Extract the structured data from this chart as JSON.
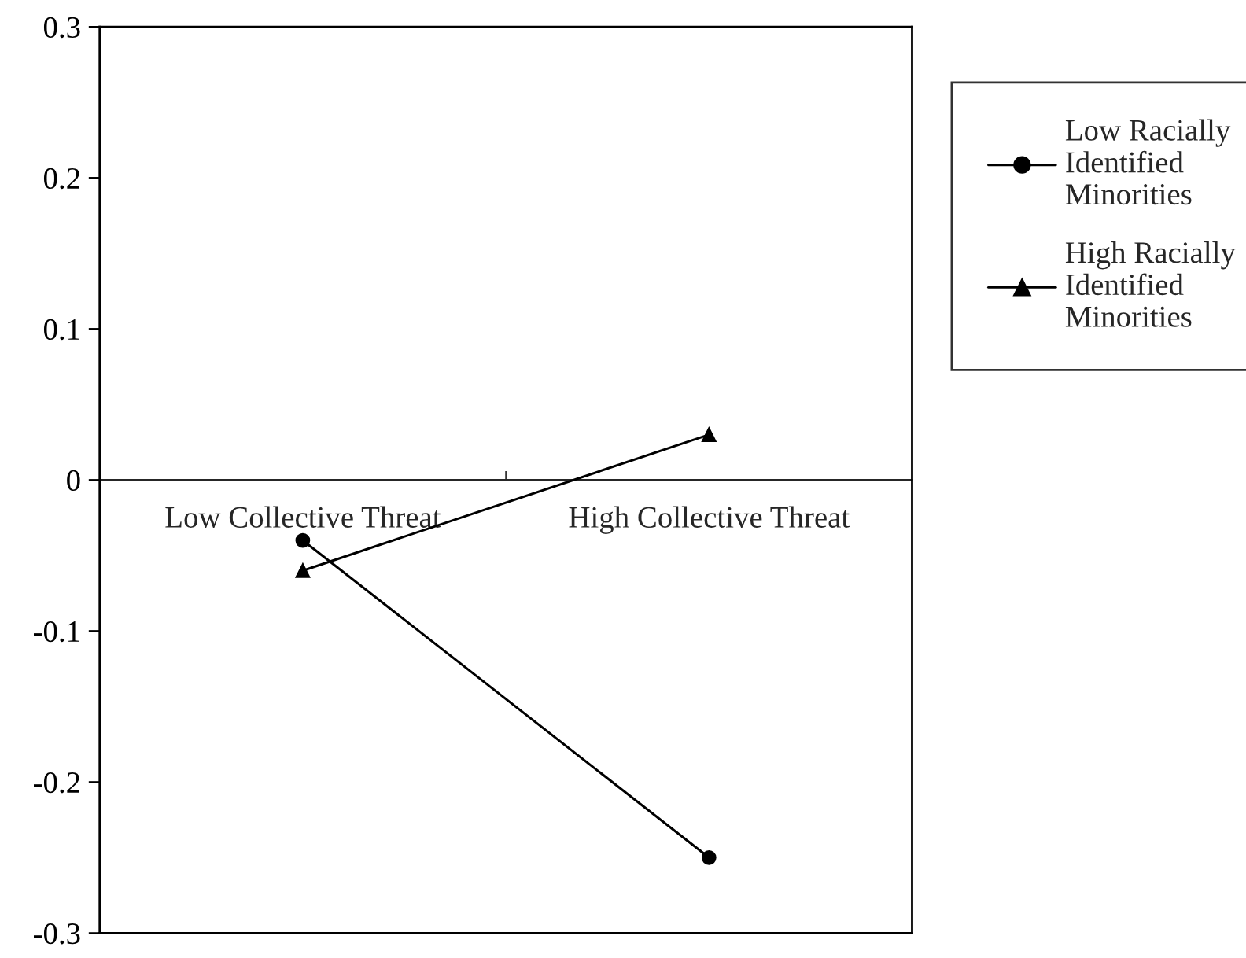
{
  "chart_data": {
    "type": "line",
    "categories": [
      "Low Collective Threat",
      "High Collective Threat"
    ],
    "series": [
      {
        "name": "Low Racially\nIdentified\nMinorities",
        "color": "#000000",
        "marker": "circle",
        "values": [
          -0.04,
          -0.25
        ]
      },
      {
        "name": "High Racially\nIdentified\nMinorities",
        "color": "#000000",
        "marker": "triangle",
        "values": [
          -0.06,
          0.03
        ]
      }
    ],
    "ylim": [
      -0.3,
      0.3
    ],
    "yticks": [
      -0.3,
      -0.2,
      -0.1,
      0,
      0.1,
      0.2,
      0.3
    ],
    "grid": false,
    "legend": "right",
    "line_style": "solid"
  }
}
